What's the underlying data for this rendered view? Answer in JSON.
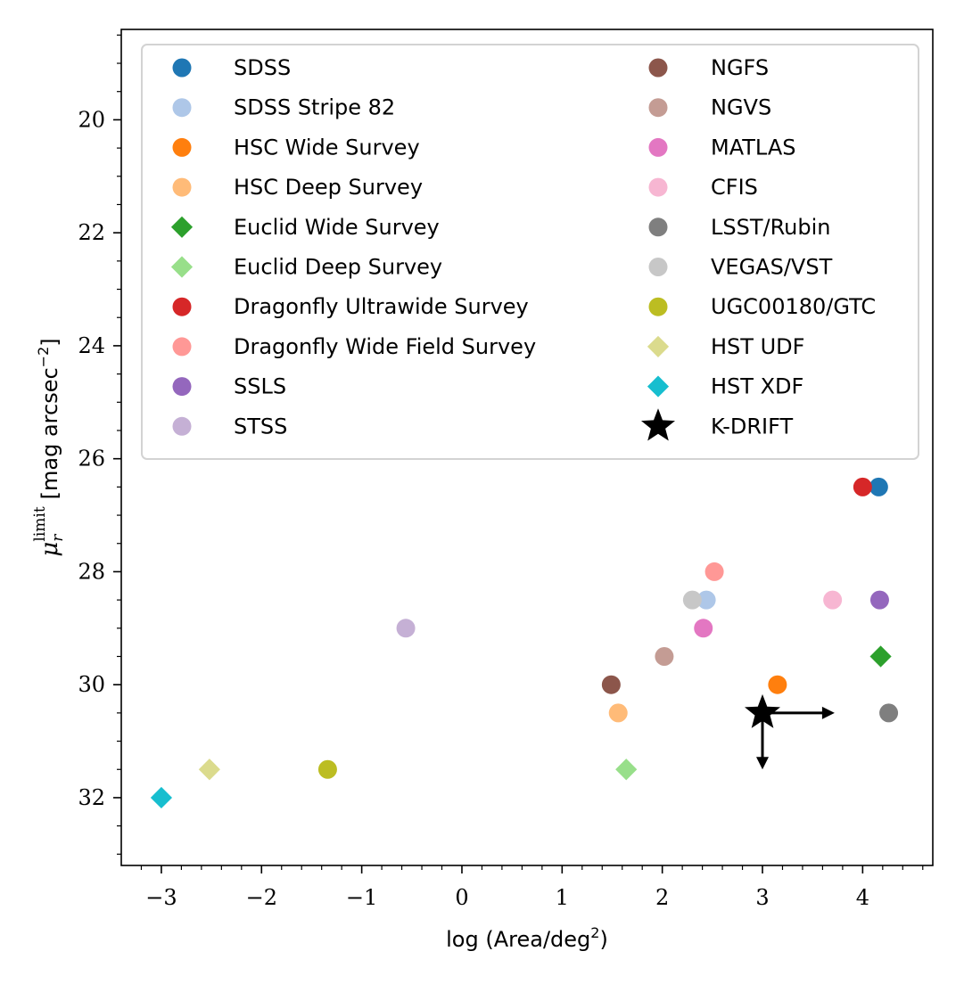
{
  "chart_data": {
    "type": "scatter",
    "title": "",
    "xlabel": "log (Area/deg",
    "xlabel_sup": "2",
    "xlabel_end": ")",
    "ylabel": "[mag arcsec",
    "ylabel_sup": "−2",
    "ylabel_end": "]",
    "ylabel_symbol": "μ",
    "ylabel_sub": "r",
    "ylabel_symbol_sup": "limit",
    "xlim": [
      -3.4,
      4.7
    ],
    "ylim": [
      33.2,
      18.4
    ],
    "y_inverted": true,
    "grid": false,
    "legend_position": "top",
    "xticks": [
      -3,
      -2,
      -1,
      0,
      1,
      2,
      3,
      4
    ],
    "xtick_labels": [
      "−3",
      "−2",
      "−1",
      "0",
      "1",
      "2",
      "3",
      "4"
    ],
    "yticks": [
      20,
      22,
      24,
      26,
      28,
      30,
      32
    ],
    "ytick_labels": [
      "20",
      "22",
      "24",
      "26",
      "28",
      "30",
      "32"
    ],
    "series": [
      {
        "name": "SDSS",
        "marker": "circle",
        "color": "#1f77b4",
        "points": [
          [
            4.16,
            26.5
          ]
        ]
      },
      {
        "name": "SDSS Stripe 82",
        "marker": "circle",
        "color": "#aec7e8",
        "points": [
          [
            2.44,
            28.5
          ]
        ]
      },
      {
        "name": "HSC Wide Survey",
        "marker": "circle",
        "color": "#ff7f0e",
        "points": [
          [
            3.15,
            30.0
          ]
        ]
      },
      {
        "name": "HSC Deep Survey",
        "marker": "circle",
        "color": "#ffbb78",
        "points": [
          [
            1.56,
            30.5
          ]
        ]
      },
      {
        "name": "Euclid Wide Survey",
        "marker": "diamond",
        "color": "#2ca02c",
        "points": [
          [
            4.18,
            29.5
          ]
        ]
      },
      {
        "name": "Euclid Deep Survey",
        "marker": "diamond",
        "color": "#98df8a",
        "points": [
          [
            1.64,
            31.5
          ]
        ]
      },
      {
        "name": "Dragonfly Ultrawide Survey",
        "marker": "circle",
        "color": "#d62728",
        "points": [
          [
            4.0,
            26.5
          ]
        ]
      },
      {
        "name": "Dragonfly Wide Field Survey",
        "marker": "circle",
        "color": "#ff9896",
        "points": [
          [
            2.52,
            28.0
          ]
        ]
      },
      {
        "name": "SSLS",
        "marker": "circle",
        "color": "#9467bd",
        "points": [
          [
            4.17,
            28.5
          ]
        ]
      },
      {
        "name": "STSS",
        "marker": "circle",
        "color": "#c5b0d5",
        "points": [
          [
            -0.56,
            29.0
          ]
        ]
      },
      {
        "name": "NGFS",
        "marker": "circle",
        "color": "#8c564b",
        "points": [
          [
            1.49,
            30.0
          ]
        ]
      },
      {
        "name": "NGVS",
        "marker": "circle",
        "color": "#c49c94",
        "points": [
          [
            2.02,
            29.5
          ]
        ]
      },
      {
        "name": "MATLAS",
        "marker": "circle",
        "color": "#e377c2",
        "points": [
          [
            2.41,
            29.0
          ]
        ]
      },
      {
        "name": "CFIS",
        "marker": "circle",
        "color": "#f7b6d2",
        "points": [
          [
            3.7,
            28.5
          ]
        ]
      },
      {
        "name": "LSST/Rubin",
        "marker": "circle",
        "color": "#7f7f7f",
        "points": [
          [
            4.26,
            30.5
          ]
        ]
      },
      {
        "name": "VEGAS/VST",
        "marker": "circle",
        "color": "#c7c7c7",
        "points": [
          [
            2.3,
            28.5
          ]
        ]
      },
      {
        "name": "UGC00180/GTC",
        "marker": "circle",
        "color": "#bcbd22",
        "points": [
          [
            -1.34,
            31.5
          ]
        ]
      },
      {
        "name": "HST UDF",
        "marker": "diamond",
        "color": "#dbdb8d",
        "points": [
          [
            -2.52,
            31.5
          ]
        ]
      },
      {
        "name": "HST XDF",
        "marker": "diamond",
        "color": "#17becf",
        "points": [
          [
            -3.0,
            32.0
          ]
        ]
      },
      {
        "name": "K-DRIFT",
        "marker": "star",
        "color": "#000000",
        "points": [
          [
            3.0,
            30.5
          ]
        ],
        "limit_arrows": {
          "x_to": 3.72,
          "y_to": 31.5
        }
      }
    ]
  }
}
